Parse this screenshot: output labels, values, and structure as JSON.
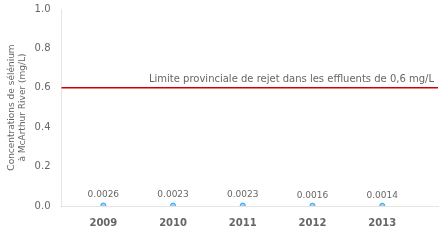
{
  "chart_data": {
    "type": "scatter",
    "x": [
      2009,
      2010,
      2011,
      2012,
      2013
    ],
    "values": [
      0.0026,
      0.0023,
      0.0023,
      0.0016,
      0.0014
    ],
    "data_labels": true,
    "xlim": [
      2008.4,
      2013.8
    ],
    "xticks": [
      2009,
      2010,
      2011,
      2012,
      2013
    ],
    "ylim": [
      0,
      1
    ],
    "yticks": [
      {
        "value": 0,
        "label": "0.0"
      },
      0.2,
      0.4,
      0.6,
      0.8,
      {
        "value": 1,
        "label": "1.0"
      }
    ],
    "ylabel": "Concentrations de sélénium à McArthur River (mg/L)",
    "grid": false,
    "annotations": [
      {
        "type": "hline",
        "y": 0.6,
        "label": "Limite provinciale de rejet dans les effluents de 0,6 mg/L",
        "color": "#cc0000"
      }
    ]
  }
}
